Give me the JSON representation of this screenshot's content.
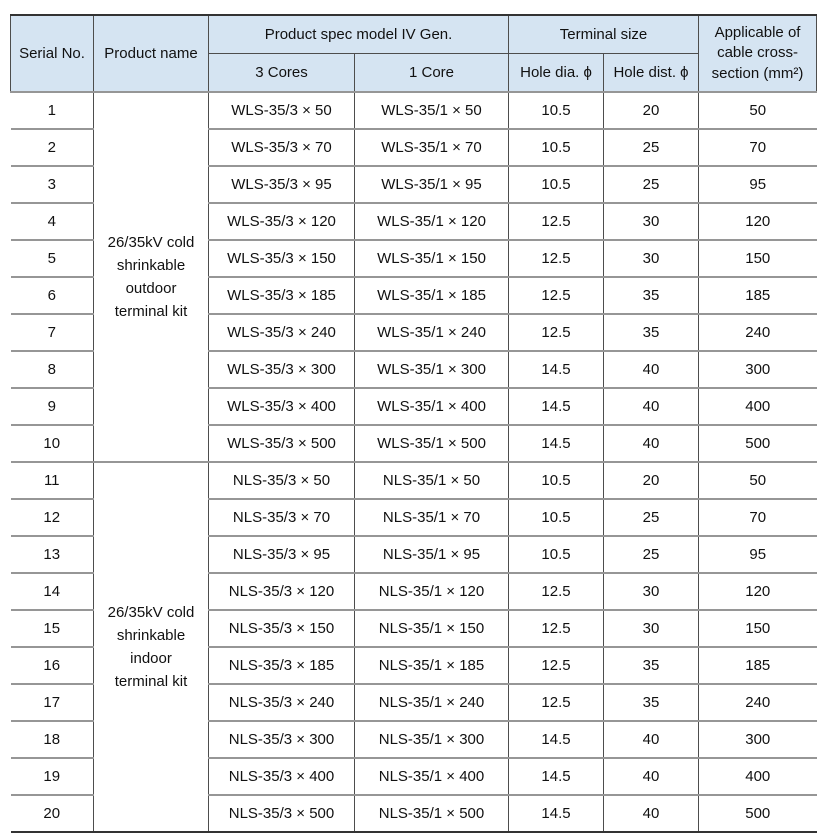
{
  "table": {
    "colors": {
      "header_bg": "#d5e4f2",
      "row_line": "#969696",
      "grid_line": "#4d4d4d",
      "outer_line": "#333333",
      "text": "#111111"
    },
    "header": {
      "serial_no": "Serial No.",
      "product_name": "Product name",
      "product_spec": "Product spec model IV Gen.",
      "cores3": "3 Cores",
      "core1": "1 Core",
      "terminal_size": "Terminal size",
      "hole_dia": "Hole dia. ϕ",
      "hole_dist": "Hole dist. ϕ",
      "applicable": "Applicable of\ncable cross-\nsection (mm²)"
    },
    "groups": [
      {
        "product_name": "26/35kV cold\nshrinkable\noutdoor\nterminal kit",
        "rows": [
          [
            "1",
            "WLS-35/3 × 50",
            "WLS-35/1 × 50",
            "10.5",
            "20",
            "50"
          ],
          [
            "2",
            "WLS-35/3 × 70",
            "WLS-35/1 × 70",
            "10.5",
            "25",
            "70"
          ],
          [
            "3",
            "WLS-35/3 × 95",
            "WLS-35/1 × 95",
            "10.5",
            "25",
            "95"
          ],
          [
            "4",
            "WLS-35/3 × 120",
            "WLS-35/1 × 120",
            "12.5",
            "30",
            "120"
          ],
          [
            "5",
            "WLS-35/3 × 150",
            "WLS-35/1 × 150",
            "12.5",
            "30",
            "150"
          ],
          [
            "6",
            "WLS-35/3 × 185",
            "WLS-35/1 × 185",
            "12.5",
            "35",
            "185"
          ],
          [
            "7",
            "WLS-35/3 × 240",
            "WLS-35/1 × 240",
            "12.5",
            "35",
            "240"
          ],
          [
            "8",
            "WLS-35/3 × 300",
            "WLS-35/1 × 300",
            "14.5",
            "40",
            "300"
          ],
          [
            "9",
            "WLS-35/3 × 400",
            "WLS-35/1 × 400",
            "14.5",
            "40",
            "400"
          ],
          [
            "10",
            "WLS-35/3 × 500",
            "WLS-35/1 × 500",
            "14.5",
            "40",
            "500"
          ]
        ]
      },
      {
        "product_name": "26/35kV cold\nshrinkable\nindoor\nterminal kit",
        "rows": [
          [
            "11",
            "NLS-35/3 × 50",
            "NLS-35/1 × 50",
            "10.5",
            "20",
            "50"
          ],
          [
            "12",
            "NLS-35/3 × 70",
            "NLS-35/1 × 70",
            "10.5",
            "25",
            "70"
          ],
          [
            "13",
            "NLS-35/3 × 95",
            "NLS-35/1 × 95",
            "10.5",
            "25",
            "95"
          ],
          [
            "14",
            "NLS-35/3 × 120",
            "NLS-35/1 × 120",
            "12.5",
            "30",
            "120"
          ],
          [
            "15",
            "NLS-35/3 × 150",
            "NLS-35/1 × 150",
            "12.5",
            "30",
            "150"
          ],
          [
            "16",
            "NLS-35/3 × 185",
            "NLS-35/1 × 185",
            "12.5",
            "35",
            "185"
          ],
          [
            "17",
            "NLS-35/3 × 240",
            "NLS-35/1 × 240",
            "12.5",
            "35",
            "240"
          ],
          [
            "18",
            "NLS-35/3 × 300",
            "NLS-35/1 × 300",
            "14.5",
            "40",
            "300"
          ],
          [
            "19",
            "NLS-35/3 × 400",
            "NLS-35/1 × 400",
            "14.5",
            "40",
            "400"
          ],
          [
            "20",
            "NLS-35/3 × 500",
            "NLS-35/1 × 500",
            "14.5",
            "40",
            "500"
          ]
        ]
      }
    ]
  }
}
